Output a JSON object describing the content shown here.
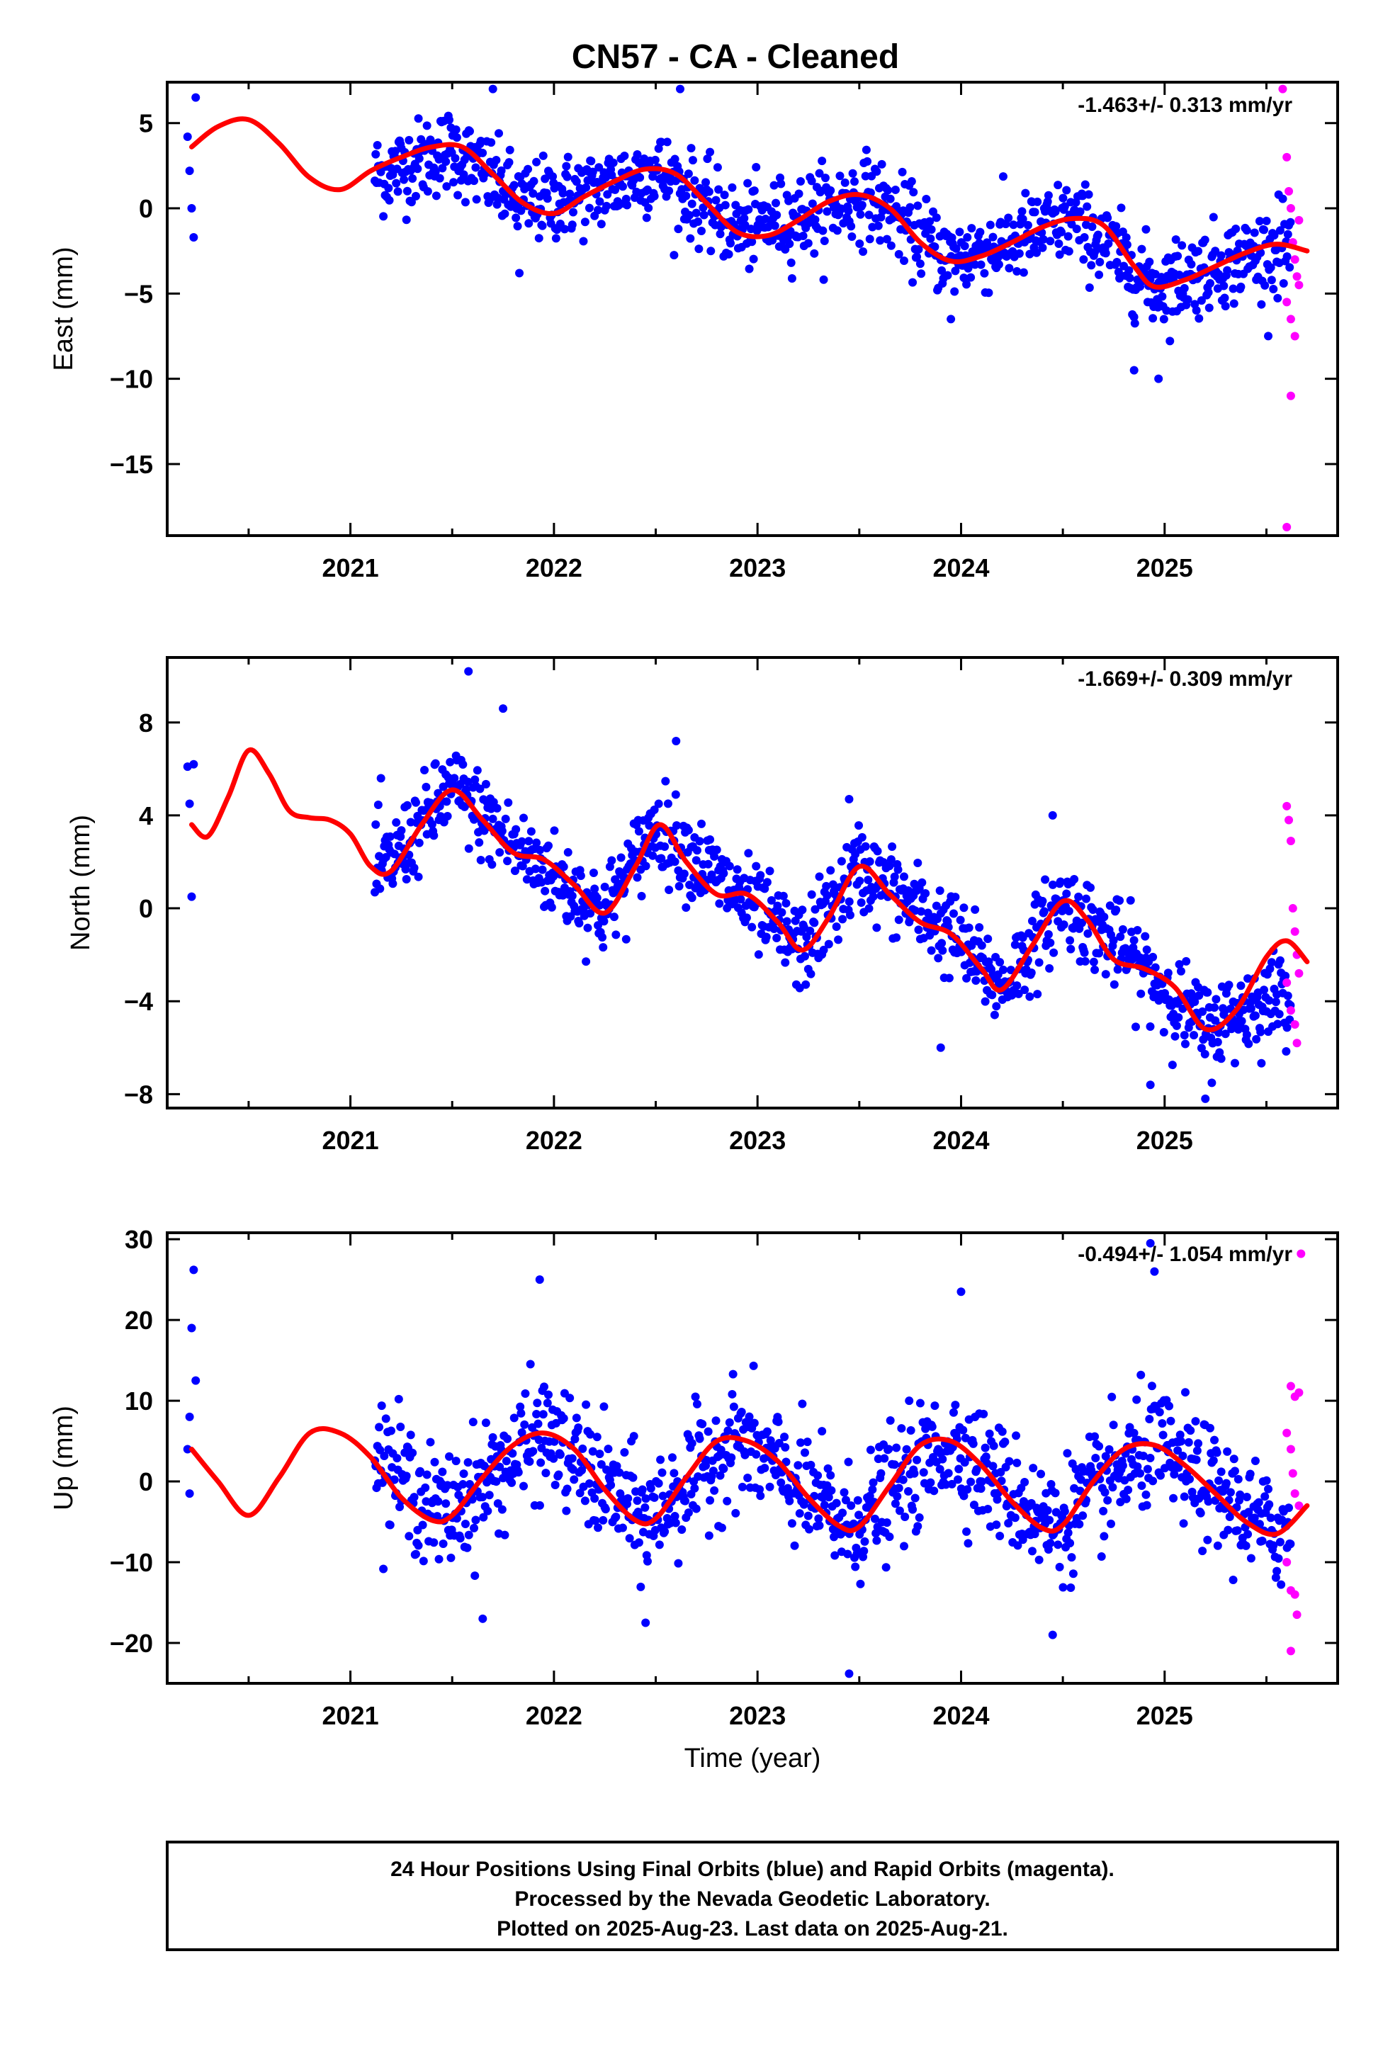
{
  "title": "CN57  - CA - Cleaned",
  "xlabel": "Time (year)",
  "footer": {
    "line1": "24 Hour Positions Using Final Orbits (blue) and Rapid Orbits (magenta).",
    "line2": "Processed by the Nevada Geodetic Laboratory.",
    "line3": "Plotted on 2025-Aug-23. Last data on 2025-Aug-21."
  },
  "colors": {
    "final": "#0000ff",
    "rapid": "#ff00ff",
    "model": "#ff0000",
    "axis": "#000000"
  },
  "chart_data": [
    {
      "type": "scatter",
      "component": "east",
      "ylabel": "East (mm)",
      "rate_label": "-1.463+/- 0.313 mm/yr",
      "xlim": [
        2020.1,
        2025.85
      ],
      "ylim": [
        -19.2,
        7.4
      ],
      "xticks": [
        2021,
        2022,
        2023,
        2024,
        2025
      ],
      "xtick_labels": [
        "2021",
        "2022",
        "2023",
        "2024",
        "2025"
      ],
      "yticks": [
        5,
        0,
        -5,
        -10,
        -15
      ],
      "ytick_labels": [
        "5",
        "0",
        "−5",
        "−10",
        "−15"
      ],
      "grid": false,
      "model": {
        "name": "fit",
        "x": [
          2020.22,
          2020.35,
          2020.5,
          2020.65,
          2020.8,
          2020.95,
          2021.1,
          2021.25,
          2021.4,
          2021.55,
          2021.7,
          2021.85,
          2022.0,
          2022.15,
          2022.3,
          2022.45,
          2022.6,
          2022.75,
          2022.9,
          2023.05,
          2023.2,
          2023.35,
          2023.5,
          2023.65,
          2023.8,
          2023.95,
          2024.1,
          2024.25,
          2024.4,
          2024.55,
          2024.7,
          2024.85,
          2024.95,
          2025.1,
          2025.25,
          2025.4,
          2025.55,
          2025.7
        ],
        "y": [
          3.6,
          4.8,
          5.2,
          3.8,
          1.8,
          1.1,
          2.2,
          3.0,
          3.6,
          3.6,
          2.0,
          0.3,
          -0.3,
          0.7,
          1.6,
          2.3,
          2.0,
          0.3,
          -1.4,
          -1.6,
          -0.7,
          0.4,
          0.8,
          0.0,
          -2.0,
          -3.1,
          -2.8,
          -2.0,
          -1.1,
          -0.6,
          -1.0,
          -3.4,
          -4.6,
          -4.2,
          -3.4,
          -2.6,
          -2.1,
          -2.5
        ]
      },
      "series": [
        {
          "name": "Final Orbits",
          "color": "#0000ff",
          "mean": [
            [
              2021.15,
              2.0
            ],
            [
              2021.5,
              3.5
            ],
            [
              2021.85,
              0.2
            ],
            [
              2022.2,
              1.0
            ],
            [
              2022.5,
              2.3
            ],
            [
              2022.9,
              -1.2
            ],
            [
              2023.2,
              -0.5
            ],
            [
              2023.55,
              0.8
            ],
            [
              2023.95,
              -3.0
            ],
            [
              2024.25,
              -2.0
            ],
            [
              2024.55,
              -0.6
            ],
            [
              2024.95,
              -4.6
            ],
            [
              2025.3,
              -3.2
            ],
            [
              2025.6,
              -2.3
            ]
          ],
          "spread": 1.7,
          "outliers": [
            [
              2020.2,
              4.2
            ],
            [
              2020.21,
              2.2
            ],
            [
              2020.22,
              0.0
            ],
            [
              2020.23,
              -1.7
            ],
            [
              2020.24,
              6.5
            ],
            [
              2021.7,
              7.0
            ],
            [
              2022.62,
              7.0
            ],
            [
              2021.83,
              -3.8
            ],
            [
              2024.85,
              -9.5
            ],
            [
              2024.97,
              -10.0
            ],
            [
              2023.95,
              -6.5
            ],
            [
              2025.56,
              0.8
            ]
          ]
        },
        {
          "name": "Rapid Orbits",
          "color": "#ff00ff",
          "points": [
            [
              2025.58,
              7.0
            ],
            [
              2025.6,
              3.0
            ],
            [
              2025.61,
              1.0
            ],
            [
              2025.62,
              0.0
            ],
            [
              2025.63,
              -2.0
            ],
            [
              2025.64,
              -3.0
            ],
            [
              2025.65,
              -4.0
            ],
            [
              2025.66,
              -4.5
            ],
            [
              2025.6,
              -5.5
            ],
            [
              2025.62,
              -6.5
            ],
            [
              2025.64,
              -7.5
            ],
            [
              2025.62,
              -11.0
            ],
            [
              2025.6,
              -18.7
            ],
            [
              2025.66,
              -0.7
            ]
          ]
        }
      ]
    },
    {
      "type": "scatter",
      "component": "north",
      "ylabel": "North (mm)",
      "rate_label": "-1.669+/- 0.309 mm/yr",
      "xlim": [
        2020.1,
        2025.85
      ],
      "ylim": [
        -8.6,
        10.8
      ],
      "xticks": [
        2021,
        2022,
        2023,
        2024,
        2025
      ],
      "xtick_labels": [
        "2021",
        "2022",
        "2023",
        "2024",
        "2025"
      ],
      "yticks": [
        8,
        4,
        0,
        -4,
        -8
      ],
      "ytick_labels": [
        "8",
        "4",
        "0",
        "−4",
        "−8"
      ],
      "grid": false,
      "model": {
        "name": "fit",
        "x": [
          2020.22,
          2020.3,
          2020.4,
          2020.5,
          2020.6,
          2020.7,
          2020.8,
          2020.9,
          2021.0,
          2021.1,
          2021.2,
          2021.35,
          2021.5,
          2021.65,
          2021.8,
          2021.95,
          2022.1,
          2022.25,
          2022.4,
          2022.52,
          2022.65,
          2022.8,
          2022.95,
          2023.1,
          2023.22,
          2023.35,
          2023.5,
          2023.65,
          2023.8,
          2023.95,
          2024.1,
          2024.2,
          2024.35,
          2024.5,
          2024.62,
          2024.75,
          2024.9,
          2025.05,
          2025.2,
          2025.35,
          2025.5,
          2025.6,
          2025.7
        ],
        "y": [
          3.6,
          3.1,
          4.8,
          6.8,
          5.8,
          4.2,
          3.9,
          3.8,
          3.2,
          1.8,
          1.6,
          3.6,
          5.1,
          3.8,
          2.4,
          2.1,
          1.0,
          -0.2,
          1.8,
          3.6,
          2.0,
          0.6,
          0.6,
          -0.6,
          -1.8,
          -0.4,
          1.8,
          0.6,
          -0.6,
          -1.1,
          -2.6,
          -3.5,
          -1.6,
          0.3,
          -0.5,
          -2.2,
          -2.6,
          -3.4,
          -5.2,
          -4.4,
          -2.1,
          -1.4,
          -2.3
        ]
      },
      "series": [
        {
          "name": "Final Orbits",
          "color": "#0000ff",
          "mean": [
            [
              2021.15,
              1.5
            ],
            [
              2021.5,
              5.2
            ],
            [
              2021.85,
              2.3
            ],
            [
              2022.25,
              -0.2
            ],
            [
              2022.5,
              3.6
            ],
            [
              2022.9,
              0.6
            ],
            [
              2023.22,
              -1.8
            ],
            [
              2023.5,
              1.8
            ],
            [
              2023.95,
              -1.1
            ],
            [
              2024.2,
              -3.4
            ],
            [
              2024.5,
              0.3
            ],
            [
              2024.9,
              -2.6
            ],
            [
              2025.2,
              -5.2
            ],
            [
              2025.6,
              -3.5
            ]
          ],
          "spread": 1.3,
          "outliers": [
            [
              2020.2,
              6.1
            ],
            [
              2020.21,
              4.5
            ],
            [
              2020.22,
              0.5
            ],
            [
              2020.23,
              6.2
            ],
            [
              2021.15,
              5.6
            ],
            [
              2021.58,
              10.2
            ],
            [
              2021.75,
              8.6
            ],
            [
              2022.6,
              7.2
            ],
            [
              2024.45,
              4.0
            ],
            [
              2023.45,
              4.7
            ],
            [
              2024.93,
              -7.6
            ],
            [
              2025.2,
              -8.2
            ],
            [
              2023.9,
              -6.0
            ]
          ]
        },
        {
          "name": "Rapid Orbits",
          "color": "#ff00ff",
          "points": [
            [
              2025.6,
              4.4
            ],
            [
              2025.61,
              3.8
            ],
            [
              2025.62,
              2.9
            ],
            [
              2025.63,
              0.0
            ],
            [
              2025.64,
              -1.0
            ],
            [
              2025.65,
              -2.0
            ],
            [
              2025.66,
              -2.8
            ],
            [
              2025.62,
              -4.4
            ],
            [
              2025.64,
              -5.0
            ],
            [
              2025.65,
              -5.8
            ],
            [
              2025.6,
              -3.2
            ]
          ]
        }
      ]
    },
    {
      "type": "scatter",
      "component": "up",
      "ylabel": "Up (mm)",
      "rate_label": "-0.494+/- 1.054 mm/yr",
      "xlim": [
        2020.1,
        2025.85
      ],
      "ylim": [
        -25.0,
        30.8
      ],
      "xticks": [
        2021,
        2022,
        2023,
        2024,
        2025
      ],
      "xtick_labels": [
        "2021",
        "2022",
        "2023",
        "2024",
        "2025"
      ],
      "yticks": [
        30,
        20,
        10,
        0,
        -10,
        -20
      ],
      "ytick_labels": [
        "30",
        "20",
        "10",
        "0",
        "−10",
        "−20"
      ],
      "grid": false,
      "model": {
        "name": "fit",
        "x": [
          2020.22,
          2020.35,
          2020.5,
          2020.65,
          2020.8,
          2020.95,
          2021.1,
          2021.25,
          2021.4,
          2021.5,
          2021.65,
          2021.8,
          2021.95,
          2022.1,
          2022.25,
          2022.4,
          2022.5,
          2022.65,
          2022.8,
          2022.95,
          2023.1,
          2023.25,
          2023.4,
          2023.5,
          2023.65,
          2023.8,
          2023.95,
          2024.1,
          2024.25,
          2024.4,
          2024.5,
          2024.65,
          2024.8,
          2024.95,
          2025.1,
          2025.25,
          2025.4,
          2025.55,
          2025.7
        ],
        "y": [
          4.0,
          0.0,
          -4.2,
          0.5,
          6.0,
          6.0,
          3.0,
          -2.0,
          -4.8,
          -4.2,
          0.5,
          4.5,
          6.0,
          4.0,
          -1.0,
          -4.8,
          -4.6,
          0.5,
          5.0,
          5.0,
          2.5,
          -2.0,
          -5.5,
          -5.6,
          -0.5,
          4.5,
          5.0,
          2.0,
          -2.5,
          -5.8,
          -5.4,
          0.0,
          4.0,
          4.5,
          2.0,
          -1.5,
          -5.0,
          -6.5,
          -3.0
        ]
      },
      "series": [
        {
          "name": "Final Orbits",
          "color": "#0000ff",
          "mean": [
            [
              2021.15,
              3.0
            ],
            [
              2021.45,
              -4.5
            ],
            [
              2021.95,
              6.0
            ],
            [
              2022.45,
              -5.0
            ],
            [
              2022.9,
              5.5
            ],
            [
              2023.45,
              -5.8
            ],
            [
              2023.95,
              5.0
            ],
            [
              2024.45,
              -5.8
            ],
            [
              2024.95,
              4.5
            ],
            [
              2025.5,
              -6.0
            ]
          ],
          "spread": 5.0,
          "outliers": [
            [
              2020.2,
              4.0
            ],
            [
              2020.21,
              8.0
            ],
            [
              2020.22,
              19.0
            ],
            [
              2020.23,
              26.2
            ],
            [
              2020.24,
              12.5
            ],
            [
              2020.21,
              -1.5
            ],
            [
              2021.93,
              25.0
            ],
            [
              2024.0,
              23.5
            ],
            [
              2024.93,
              29.5
            ],
            [
              2024.95,
              26.0
            ],
            [
              2021.65,
              -17.0
            ],
            [
              2023.45,
              -23.8
            ],
            [
              2022.45,
              -17.5
            ],
            [
              2024.45,
              -19.0
            ]
          ]
        },
        {
          "name": "Rapid Orbits",
          "color": "#ff00ff",
          "points": [
            [
              2025.67,
              28.2
            ],
            [
              2025.62,
              11.8
            ],
            [
              2025.64,
              10.5
            ],
            [
              2025.66,
              11.0
            ],
            [
              2025.6,
              6.0
            ],
            [
              2025.62,
              4.0
            ],
            [
              2025.63,
              1.0
            ],
            [
              2025.64,
              -1.5
            ],
            [
              2025.66,
              -3.0
            ],
            [
              2025.6,
              -10.0
            ],
            [
              2025.62,
              -13.5
            ],
            [
              2025.64,
              -14.0
            ],
            [
              2025.65,
              -16.5
            ],
            [
              2025.62,
              -21.0
            ]
          ]
        }
      ]
    }
  ]
}
